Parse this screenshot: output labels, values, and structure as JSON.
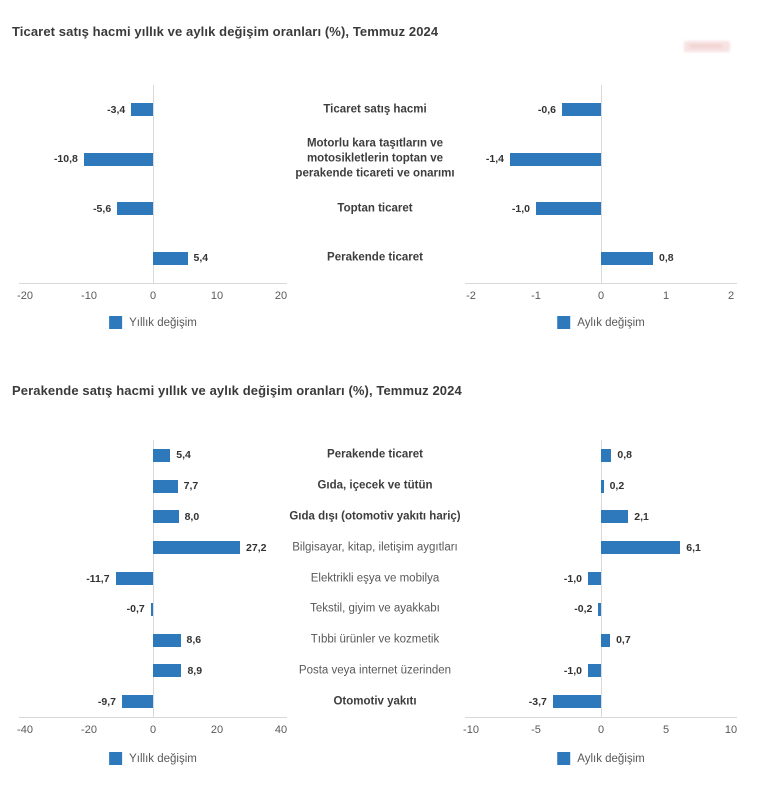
{
  "page_background": "#ffffff",
  "colors": {
    "bar": "#2d79bc",
    "title_text": "#3a3a3a",
    "category_bold_text": "#3d3d3d",
    "category_muted_text": "#595959",
    "tick_text": "#595959",
    "axis_line": "#d9d9d9",
    "value_text": "#333333",
    "watermark": "#eec0c0"
  },
  "chart_data": [
    {
      "type": "bar",
      "orientation": "horizontal",
      "title": "Ticaret satış hacmi yıllık ve aylık değişim oranları (%), Temmuz 2024",
      "categories": [
        "Ticaret satış hacmi",
        "Motorlu kara taşıtların ve\nmotosikletlerin toptan ve\nperakende ticareti ve onarımı",
        "Toptan ticaret",
        "Perakende ticaret"
      ],
      "category_bold": [
        true,
        true,
        true,
        true
      ],
      "series": [
        {
          "name": "Yıllık değişim",
          "panel": "left",
          "values": [
            -3.4,
            -10.8,
            -5.6,
            5.4
          ],
          "xlim": [
            -20,
            20
          ],
          "ticks": [
            -20,
            -10,
            0,
            10,
            20
          ]
        },
        {
          "name": "Aylık değişim",
          "panel": "right",
          "values": [
            -0.6,
            -1.4,
            -1.0,
            0.8
          ],
          "xlim": [
            -2,
            2
          ],
          "ticks": [
            -2,
            -1,
            0,
            1,
            2
          ]
        }
      ],
      "legend_position": "bottom",
      "grid": false,
      "decimal_separator": ","
    },
    {
      "type": "bar",
      "orientation": "horizontal",
      "title": "Perakende satış hacmi yıllık ve aylık değişim oranları (%), Temmuz 2024",
      "categories": [
        "Perakende ticaret",
        "Gıda, içecek ve tütün",
        "Gıda dışı (otomotiv yakıtı hariç)",
        "Bilgisayar, kitap, iletişim aygıtları",
        "Elektrikli eşya ve mobilya",
        "Tekstil, giyim ve ayakkabı",
        "Tıbbi ürünler ve kozmetik",
        "Posta veya internet üzerinden",
        "Otomotiv yakıtı"
      ],
      "category_bold": [
        true,
        true,
        true,
        false,
        false,
        false,
        false,
        false,
        true
      ],
      "series": [
        {
          "name": "Yıllık değişim",
          "panel": "left",
          "values": [
            5.4,
            7.7,
            8.0,
            27.2,
            -11.7,
            -0.7,
            8.6,
            8.9,
            -9.7
          ],
          "xlim": [
            -40,
            40
          ],
          "ticks": [
            -40,
            -20,
            0,
            20,
            40
          ]
        },
        {
          "name": "Aylık değişim",
          "panel": "right",
          "values": [
            0.8,
            0.2,
            2.1,
            6.1,
            -1.0,
            -0.2,
            0.7,
            -1.0,
            -3.7
          ],
          "xlim": [
            -10,
            10
          ],
          "ticks": [
            -10,
            -5,
            0,
            5,
            10
          ]
        }
      ],
      "legend_position": "bottom",
      "grid": false,
      "decimal_separator": ","
    }
  ]
}
